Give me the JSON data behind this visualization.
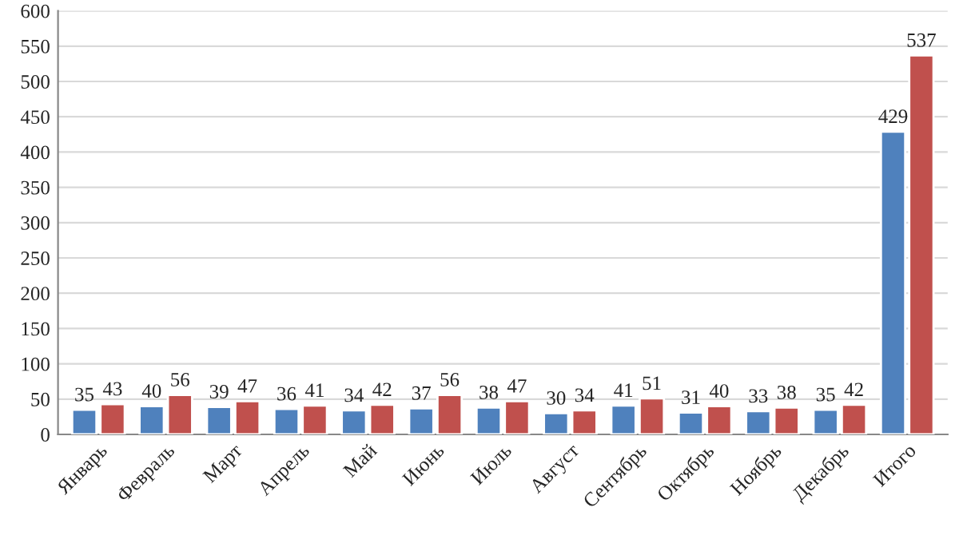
{
  "chart_data": {
    "type": "bar",
    "categories": [
      "Январь",
      "Февраль",
      "Март",
      "Апрель",
      "Май",
      "Июнь",
      "Июль",
      "Август",
      "Сентябрь",
      "Октябрь",
      "Ноябрь",
      "Декабрь",
      "Итого"
    ],
    "series": [
      {
        "color": "#4f81bd",
        "values": [
          35,
          40,
          39,
          36,
          34,
          37,
          38,
          30,
          41,
          31,
          33,
          35,
          429
        ]
      },
      {
        "color": "#c0504d",
        "values": [
          43,
          56,
          47,
          41,
          42,
          56,
          47,
          34,
          51,
          40,
          38,
          42,
          537
        ]
      }
    ],
    "ylim": [
      0,
      600
    ],
    "yticks": [
      0,
      50,
      100,
      150,
      200,
      250,
      300,
      350,
      400,
      450,
      500,
      550,
      600
    ],
    "grid": "y",
    "data_labels": true
  }
}
